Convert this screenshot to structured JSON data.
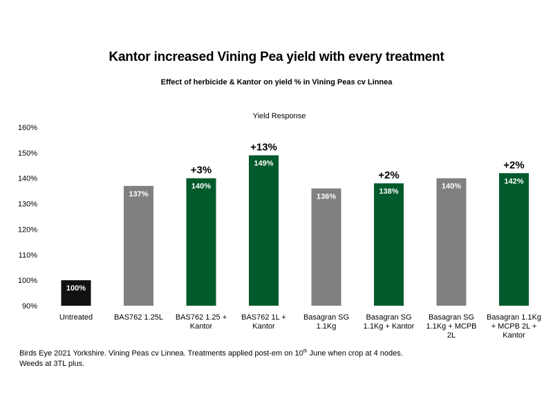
{
  "title": "Kantor increased Vining Pea yield with every treatment",
  "subtitle": "Effect of herbicide & Kantor on yield % in Vining Peas cv Linnea",
  "footnote": {
    "before_sup": "Birds Eye 2021 Yorkshire. Vining Peas cv Linnea. Treatments applied post-em on 10",
    "sup": "th",
    "after_sup": " June when crop at 4 nodes. Weeds at 3TL plus."
  },
  "colors": {
    "untreated": "#111111",
    "herbicide": "#808080",
    "kantor": "#005a2b"
  },
  "chart_data": {
    "type": "bar",
    "title": "Yield Response",
    "ylim": [
      90,
      160
    ],
    "yticks": [
      90,
      100,
      110,
      120,
      130,
      140,
      150,
      160
    ],
    "ytick_labels": [
      "90%",
      "100%",
      "110%",
      "120%",
      "130%",
      "140%",
      "150%",
      "160%"
    ],
    "grid": false,
    "categories": [
      [
        "Untreated"
      ],
      [
        "BAS762 1.25L"
      ],
      [
        "BAS762 1.25 +",
        "Kantor"
      ],
      [
        "BAS762 1L +",
        "Kantor"
      ],
      [
        "Basagran SG",
        "1.1Kg"
      ],
      [
        "Basagran SG",
        "1.1Kg + Kantor"
      ],
      [
        "Basagran SG",
        "1.1Kg + MCPB",
        "2L"
      ],
      [
        "Basagran 1.1Kg",
        "+ MCPB 2L +",
        "Kantor"
      ]
    ],
    "values": [
      100,
      137,
      140,
      149,
      136,
      138,
      140,
      142
    ],
    "value_labels": [
      "100%",
      "137%",
      "140%",
      "149%",
      "136%",
      "138%",
      "140%",
      "142%"
    ],
    "bar_groups": [
      "untreated",
      "herbicide",
      "kantor",
      "kantor",
      "herbicide",
      "kantor",
      "herbicide",
      "kantor"
    ],
    "annotations": [
      "",
      "",
      "+3%",
      "+13%",
      "",
      "+2%",
      "",
      "+2%"
    ]
  }
}
